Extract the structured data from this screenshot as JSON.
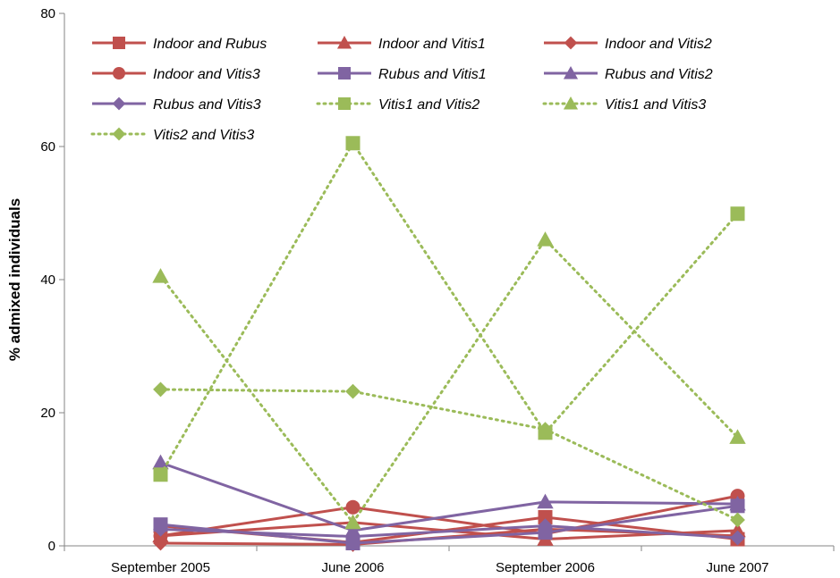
{
  "chart_data": {
    "type": "line",
    "title": "",
    "xlabel": "",
    "ylabel": "% admixed individuals",
    "categories": [
      "September 2005",
      "June 2006",
      "September 2006",
      "June 2007"
    ],
    "ylim": [
      0,
      80
    ],
    "yticks": [
      0,
      20,
      40,
      60,
      80
    ],
    "grid": false,
    "legend_position": "top-left",
    "series": [
      {
        "name": "Indoor and Rubus",
        "values": [
          3.0,
          0.5,
          4.3,
          1.0
        ],
        "color": "#c0504d",
        "marker": "square",
        "dash": "solid"
      },
      {
        "name": "Indoor and Vitis1",
        "values": [
          1.5,
          3.5,
          1.0,
          2.3
        ],
        "color": "#c0504d",
        "marker": "triangle",
        "dash": "solid"
      },
      {
        "name": "Indoor and Vitis2",
        "values": [
          0.4,
          0.2,
          2.5,
          1.5
        ],
        "color": "#c0504d",
        "marker": "diamond",
        "dash": "solid"
      },
      {
        "name": "Indoor and Vitis3",
        "values": [
          1.5,
          5.8,
          1.8,
          7.5
        ],
        "color": "#c0504d",
        "marker": "circle",
        "dash": "solid"
      },
      {
        "name": "Rubus and Vitis1",
        "values": [
          3.2,
          0.4,
          2.0,
          6.0
        ],
        "color": "#8064a2",
        "marker": "square",
        "dash": "solid"
      },
      {
        "name": "Rubus and Vitis2",
        "values": [
          12.5,
          2.3,
          6.6,
          6.3
        ],
        "color": "#8064a2",
        "marker": "triangle",
        "dash": "solid"
      },
      {
        "name": "Rubus and Vitis3",
        "values": [
          2.5,
          1.4,
          3.0,
          1.2
        ],
        "color": "#8064a2",
        "marker": "diamond",
        "dash": "solid"
      },
      {
        "name": "Vitis1 and Vitis2",
        "values": [
          10.7,
          60.5,
          17.0,
          49.9
        ],
        "color": "#9bbb59",
        "marker": "square",
        "dash": "dotted"
      },
      {
        "name": "Vitis1 and Vitis3",
        "values": [
          40.5,
          3.5,
          46.0,
          16.3
        ],
        "color": "#9bbb59",
        "marker": "triangle",
        "dash": "dotted"
      },
      {
        "name": "Vitis2 and Vitis3",
        "values": [
          23.5,
          23.2,
          17.5,
          3.9
        ],
        "color": "#9bbb59",
        "marker": "diamond",
        "dash": "dotted"
      }
    ]
  }
}
